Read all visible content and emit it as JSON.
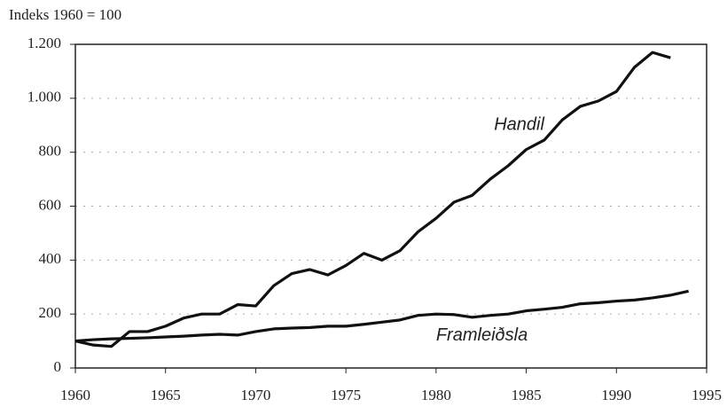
{
  "chart_data": {
    "type": "line",
    "y_label": "Indeks 1960 = 100",
    "x": [
      1960,
      1961,
      1962,
      1963,
      1964,
      1965,
      1966,
      1967,
      1968,
      1969,
      1970,
      1971,
      1972,
      1973,
      1974,
      1975,
      1976,
      1977,
      1978,
      1979,
      1980,
      1981,
      1982,
      1983,
      1984,
      1985,
      1986,
      1987,
      1988,
      1989,
      1990,
      1991,
      1992,
      1993,
      1994
    ],
    "series": [
      {
        "name": "Handil",
        "color": "#111111",
        "values": [
          100,
          85,
          80,
          135,
          135,
          155,
          185,
          200,
          200,
          235,
          230,
          305,
          350,
          365,
          345,
          380,
          425,
          400,
          435,
          505,
          555,
          615,
          640,
          700,
          750,
          810,
          845,
          920,
          970,
          990,
          1025,
          1115,
          1170,
          1150,
          null
        ]
      },
      {
        "name": "Framleiðsla",
        "color": "#111111",
        "values": [
          100,
          105,
          108,
          110,
          112,
          115,
          118,
          122,
          125,
          122,
          135,
          145,
          148,
          150,
          155,
          155,
          162,
          170,
          178,
          195,
          200,
          198,
          188,
          195,
          200,
          212,
          218,
          225,
          238,
          242,
          248,
          252,
          260,
          270,
          285
        ]
      }
    ],
    "xlim": [
      1960,
      1995
    ],
    "xticks": [
      1960,
      1965,
      1970,
      1975,
      1980,
      1985,
      1990,
      1995
    ],
    "ylim": [
      0,
      1200
    ],
    "yticks": [
      0,
      200,
      400,
      600,
      800,
      {
        "value": 1000,
        "label": "1.000"
      },
      {
        "value": 1200,
        "label": "1.200"
      }
    ],
    "grid": true
  }
}
